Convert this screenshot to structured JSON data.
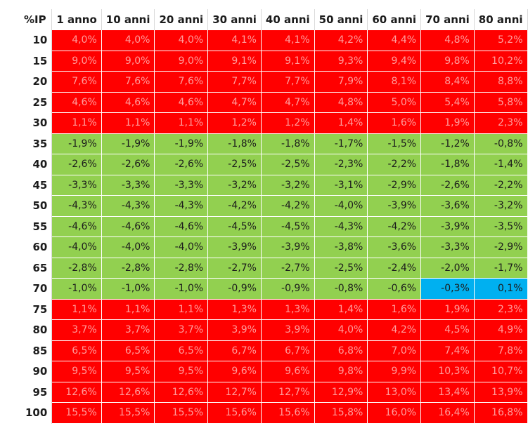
{
  "table": {
    "corner": "%IP",
    "columns": [
      "1 anno",
      "10 anni",
      "20 anni",
      "30 anni",
      "40 anni",
      "50 anni",
      "60 anni",
      "70 anni",
      "80 anni"
    ],
    "colors": {
      "red": "#ff0000",
      "green": "#92d050",
      "blue": "#00b0f0"
    },
    "rows": [
      {
        "label": "10",
        "color": "red",
        "values": [
          "4,0%",
          "4,0%",
          "4,0%",
          "4,1%",
          "4,1%",
          "4,2%",
          "4,4%",
          "4,8%",
          "5,2%"
        ]
      },
      {
        "label": "15",
        "color": "red",
        "values": [
          "9,0%",
          "9,0%",
          "9,0%",
          "9,1%",
          "9,1%",
          "9,3%",
          "9,4%",
          "9,8%",
          "10,2%"
        ]
      },
      {
        "label": "20",
        "color": "red",
        "values": [
          "7,6%",
          "7,6%",
          "7,6%",
          "7,7%",
          "7,7%",
          "7,9%",
          "8,1%",
          "8,4%",
          "8,8%"
        ]
      },
      {
        "label": "25",
        "color": "red",
        "values": [
          "4,6%",
          "4,6%",
          "4,6%",
          "4,7%",
          "4,7%",
          "4,8%",
          "5,0%",
          "5,4%",
          "5,8%"
        ]
      },
      {
        "label": "30",
        "color": "red",
        "values": [
          "1,1%",
          "1,1%",
          "1,1%",
          "1,2%",
          "1,2%",
          "1,4%",
          "1,6%",
          "1,9%",
          "2,3%"
        ]
      },
      {
        "label": "35",
        "color": "green",
        "values": [
          "-1,9%",
          "-1,9%",
          "-1,9%",
          "-1,8%",
          "-1,8%",
          "-1,7%",
          "-1,5%",
          "-1,2%",
          "-0,8%"
        ]
      },
      {
        "label": "40",
        "color": "green",
        "values": [
          "-2,6%",
          "-2,6%",
          "-2,6%",
          "-2,5%",
          "-2,5%",
          "-2,3%",
          "-2,2%",
          "-1,8%",
          "-1,4%"
        ]
      },
      {
        "label": "45",
        "color": "green",
        "values": [
          "-3,3%",
          "-3,3%",
          "-3,3%",
          "-3,2%",
          "-3,2%",
          "-3,1%",
          "-2,9%",
          "-2,6%",
          "-2,2%"
        ]
      },
      {
        "label": "50",
        "color": "green",
        "values": [
          "-4,3%",
          "-4,3%",
          "-4,3%",
          "-4,2%",
          "-4,2%",
          "-4,0%",
          "-3,9%",
          "-3,6%",
          "-3,2%"
        ]
      },
      {
        "label": "55",
        "color": "green",
        "values": [
          "-4,6%",
          "-4,6%",
          "-4,6%",
          "-4,5%",
          "-4,5%",
          "-4,3%",
          "-4,2%",
          "-3,9%",
          "-3,5%"
        ]
      },
      {
        "label": "60",
        "color": "green",
        "values": [
          "-4,0%",
          "-4,0%",
          "-4,0%",
          "-3,9%",
          "-3,9%",
          "-3,8%",
          "-3,6%",
          "-3,3%",
          "-2,9%"
        ]
      },
      {
        "label": "65",
        "color": "green",
        "values": [
          "-2,8%",
          "-2,8%",
          "-2,8%",
          "-2,7%",
          "-2,7%",
          "-2,5%",
          "-2,4%",
          "-2,0%",
          "-1,7%"
        ]
      },
      {
        "label": "70",
        "color": "green",
        "values": [
          "-1,0%",
          "-1,0%",
          "-1,0%",
          "-0,9%",
          "-0,9%",
          "-0,8%",
          "-0,6%",
          "-0,3%",
          "0,1%"
        ],
        "cell_colors": {
          "7": "blue",
          "8": "blue"
        }
      },
      {
        "label": "75",
        "color": "red",
        "values": [
          "1,1%",
          "1,1%",
          "1,1%",
          "1,3%",
          "1,3%",
          "1,4%",
          "1,6%",
          "1,9%",
          "2,3%"
        ]
      },
      {
        "label": "80",
        "color": "red",
        "values": [
          "3,7%",
          "3,7%",
          "3,7%",
          "3,9%",
          "3,9%",
          "4,0%",
          "4,2%",
          "4,5%",
          "4,9%"
        ]
      },
      {
        "label": "85",
        "color": "red",
        "values": [
          "6,5%",
          "6,5%",
          "6,5%",
          "6,7%",
          "6,7%",
          "6,8%",
          "7,0%",
          "7,4%",
          "7,8%"
        ]
      },
      {
        "label": "90",
        "color": "red",
        "values": [
          "9,5%",
          "9,5%",
          "9,5%",
          "9,6%",
          "9,6%",
          "9,8%",
          "9,9%",
          "10,3%",
          "10,7%"
        ]
      },
      {
        "label": "95",
        "color": "red",
        "values": [
          "12,6%",
          "12,6%",
          "12,6%",
          "12,7%",
          "12,7%",
          "12,9%",
          "13,0%",
          "13,4%",
          "13,9%"
        ]
      },
      {
        "label": "100",
        "color": "red",
        "values": [
          "15,5%",
          "15,5%",
          "15,5%",
          "15,6%",
          "15,6%",
          "15,8%",
          "16,0%",
          "16,4%",
          "16,8%"
        ]
      }
    ]
  }
}
